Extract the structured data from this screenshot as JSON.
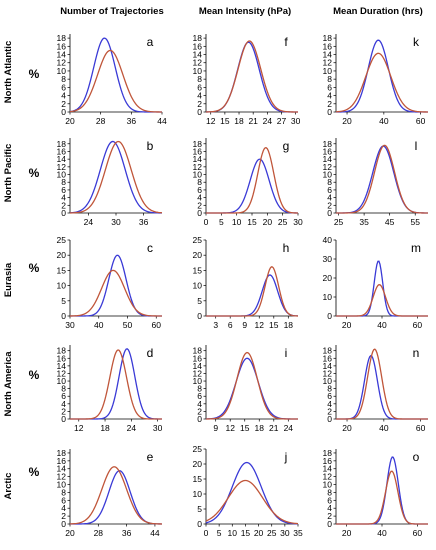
{
  "figure": {
    "column_headers": [
      "Number of Trajectories",
      "Mean Intensity (hPa)",
      "Mean Duration (hrs)"
    ],
    "row_labels": [
      "North Atlantic",
      "North Pacific",
      "Eurasia",
      "North America",
      "Arctic"
    ],
    "ylabel": "%",
    "colors": {
      "blue": "#3a3ad6",
      "red": "#c0563a",
      "green": "#5aa84a"
    }
  },
  "chart_data": [
    {
      "id": "a",
      "type": "line",
      "title": "a",
      "xlabel": "",
      "ylabel": "%",
      "xticks": [
        20,
        28,
        36,
        44
      ],
      "xlim": [
        20,
        44
      ],
      "yticks": [
        0,
        2,
        4,
        6,
        8,
        10,
        12,
        14,
        16,
        18
      ],
      "ylim": [
        0,
        19
      ],
      "series": [
        {
          "color": "blue",
          "peak_x": 29,
          "peak_y": 18,
          "width": 2.8
        },
        {
          "color": "red",
          "peak_x": 30.5,
          "peak_y": 15,
          "width": 3.3
        }
      ]
    },
    {
      "id": "f",
      "type": "line",
      "title": "f",
      "xlabel": "",
      "ylabel": "",
      "xticks": [
        12,
        15,
        18,
        21,
        24,
        27,
        30
      ],
      "xlim": [
        11,
        30.5
      ],
      "yticks": [
        0,
        2,
        4,
        6,
        8,
        10,
        12,
        14,
        16,
        18
      ],
      "ylim": [
        0,
        19
      ],
      "series": [
        {
          "color": "blue",
          "peak_x": 20,
          "peak_y": 17,
          "width": 2.3
        },
        {
          "color": "red",
          "peak_x": 20.2,
          "peak_y": 17.3,
          "width": 2.4
        }
      ]
    },
    {
      "id": "k",
      "type": "line",
      "title": "k",
      "xlabel": "",
      "ylabel": "",
      "xticks": [
        20,
        40,
        60
      ],
      "xlim": [
        14,
        64
      ],
      "yticks": [
        0,
        2,
        4,
        6,
        8,
        10,
        12,
        14,
        16,
        18
      ],
      "ylim": [
        0,
        19
      ],
      "series": [
        {
          "color": "blue",
          "peak_x": 37,
          "peak_y": 17.5,
          "width": 5.5
        },
        {
          "color": "red",
          "peak_x": 37,
          "peak_y": 14.3,
          "width": 6.8
        }
      ]
    },
    {
      "id": "b",
      "type": "line",
      "title": "b",
      "xlabel": "",
      "ylabel": "%",
      "xticks": [
        24,
        30,
        36
      ],
      "xlim": [
        20,
        40
      ],
      "yticks": [
        0,
        2,
        4,
        6,
        8,
        10,
        12,
        14,
        16,
        18
      ],
      "ylim": [
        0,
        19.5
      ],
      "series": [
        {
          "color": "blue",
          "peak_x": 29.3,
          "peak_y": 18.6,
          "width": 2.7
        },
        {
          "color": "red",
          "peak_x": 30.5,
          "peak_y": 18.6,
          "width": 2.8
        }
      ]
    },
    {
      "id": "g",
      "type": "line",
      "title": "g",
      "xlabel": "",
      "ylabel": "",
      "xticks": [
        0,
        5,
        10,
        15,
        20,
        25,
        30
      ],
      "xlim": [
        0,
        30
      ],
      "yticks": [
        0,
        2,
        4,
        6,
        8,
        10,
        12,
        14,
        16,
        18
      ],
      "ylim": [
        0,
        19.5
      ],
      "series": [
        {
          "color": "blue",
          "peak_x": 17.5,
          "peak_y": 14,
          "width": 3.1
        },
        {
          "color": "red",
          "peak_x": 19.5,
          "peak_y": 17,
          "width": 2.6
        }
      ]
    },
    {
      "id": "l",
      "type": "line",
      "title": "l",
      "xlabel": "",
      "ylabel": "",
      "xticks": [
        25,
        35,
        45,
        55
      ],
      "xlim": [
        24,
        60
      ],
      "yticks": [
        0,
        2,
        4,
        6,
        8,
        10,
        12,
        14,
        16,
        18
      ],
      "ylim": [
        0,
        19.5
      ],
      "series": [
        {
          "color": "blue",
          "peak_x": 42.5,
          "peak_y": 17.4,
          "width": 4.1
        },
        {
          "color": "red",
          "peak_x": 43,
          "peak_y": 17.6,
          "width": 3.9
        }
      ]
    },
    {
      "id": "c",
      "type": "line",
      "title": "c",
      "xlabel": "",
      "ylabel": "%",
      "xticks": [
        30,
        40,
        50,
        60
      ],
      "xlim": [
        30,
        62
      ],
      "yticks": [
        0,
        5,
        10,
        15,
        20,
        25
      ],
      "ylim": [
        0,
        25
      ],
      "series": [
        {
          "color": "blue",
          "peak_x": 46.5,
          "peak_y": 20,
          "width": 3.0
        },
        {
          "color": "red",
          "peak_x": 45,
          "peak_y": 15,
          "width": 4.0
        }
      ]
    },
    {
      "id": "h",
      "type": "line",
      "title": "h",
      "xlabel": "",
      "ylabel": "",
      "xticks": [
        3,
        6,
        9,
        12,
        15,
        18
      ],
      "xlim": [
        1,
        20
      ],
      "yticks": [
        0,
        5,
        10,
        15,
        20,
        25
      ],
      "ylim": [
        0,
        25
      ],
      "series": [
        {
          "color": "blue",
          "peak_x": 14.2,
          "peak_y": 13.5,
          "width": 1.6
        },
        {
          "color": "red",
          "peak_x": 14.6,
          "peak_y": 16.2,
          "width": 1.4
        }
      ]
    },
    {
      "id": "m",
      "type": "line",
      "title": "m",
      "xlabel": "",
      "ylabel": "",
      "xticks": [
        20,
        40,
        60
      ],
      "xlim": [
        14,
        66
      ],
      "yticks": [
        0,
        10,
        20,
        30,
        40
      ],
      "ylim": [
        0,
        40
      ],
      "series": [
        {
          "color": "blue",
          "peak_x": 38,
          "peak_y": 29,
          "width": 2.4
        },
        {
          "color": "red",
          "peak_x": 38.5,
          "peak_y": 16.5,
          "width": 3.5
        }
      ]
    },
    {
      "id": "d",
      "type": "line",
      "title": "d",
      "xlabel": "",
      "ylabel": "%",
      "xticks": [
        12,
        18,
        24,
        30
      ],
      "xlim": [
        10,
        31
      ],
      "yticks": [
        0,
        2,
        4,
        6,
        8,
        10,
        12,
        14,
        16,
        18
      ],
      "ylim": [
        0,
        19.5
      ],
      "series": [
        {
          "color": "blue",
          "peak_x": 23,
          "peak_y": 18.5,
          "width": 1.8
        },
        {
          "color": "red",
          "peak_x": 21,
          "peak_y": 18.2,
          "width": 1.9
        }
      ]
    },
    {
      "id": "i",
      "type": "line",
      "title": "i",
      "xlabel": "",
      "ylabel": "",
      "xticks": [
        9,
        12,
        15,
        18,
        21,
        24
      ],
      "xlim": [
        7,
        26
      ],
      "yticks": [
        0,
        2,
        4,
        6,
        8,
        10,
        12,
        14,
        16,
        18
      ],
      "ylim": [
        0,
        19.5
      ],
      "series": [
        {
          "color": "blue",
          "peak_x": 15.5,
          "peak_y": 16,
          "width": 2.3
        },
        {
          "color": "red",
          "peak_x": 15.5,
          "peak_y": 17.5,
          "width": 2.1
        }
      ]
    },
    {
      "id": "n",
      "type": "line",
      "title": "n",
      "xlabel": "",
      "ylabel": "",
      "xticks": [
        20,
        40,
        60
      ],
      "xlim": [
        14,
        64
      ],
      "yticks": [
        0,
        2,
        4,
        6,
        8,
        10,
        12,
        14,
        16,
        18
      ],
      "ylim": [
        0,
        19.5
      ],
      "series": [
        {
          "color": "blue",
          "peak_x": 33,
          "peak_y": 16.7,
          "width": 3.5
        },
        {
          "color": "red",
          "peak_x": 35,
          "peak_y": 18.4,
          "width": 3.8
        }
      ]
    },
    {
      "id": "e",
      "type": "line",
      "title": "e",
      "xlabel": "",
      "ylabel": "%",
      "xticks": [
        20,
        28,
        36,
        44
      ],
      "xlim": [
        20,
        46
      ],
      "yticks": [
        0,
        2,
        4,
        6,
        8,
        10,
        12,
        14,
        16,
        18
      ],
      "ylim": [
        0,
        19
      ],
      "series": [
        {
          "color": "blue",
          "peak_x": 34,
          "peak_y": 13.5,
          "width": 3.0
        },
        {
          "color": "red",
          "peak_x": 32.5,
          "peak_y": 14.5,
          "width": 3.5
        }
      ]
    },
    {
      "id": "j",
      "type": "line",
      "title": "j",
      "xlabel": "",
      "ylabel": "",
      "xticks": [
        0,
        5,
        10,
        15,
        20,
        25,
        30,
        35
      ],
      "xlim": [
        0,
        35
      ],
      "yticks": [
        0,
        5,
        10,
        15,
        20,
        25
      ],
      "ylim": [
        0,
        25
      ],
      "series": [
        {
          "color": "blue",
          "peak_x": 15.5,
          "peak_y": 20.5,
          "width": 5.5
        },
        {
          "color": "red",
          "peak_x": 15,
          "peak_y": 14.5,
          "width": 6.5
        }
      ]
    },
    {
      "id": "o",
      "type": "line",
      "title": "o",
      "xlabel": "",
      "ylabel": "",
      "xticks": [
        20,
        40,
        60
      ],
      "xlim": [
        14,
        66
      ],
      "yticks": [
        0,
        2,
        4,
        6,
        8,
        10,
        12,
        14,
        16,
        18
      ],
      "ylim": [
        0,
        19
      ],
      "series": [
        {
          "color": "blue",
          "peak_x": 46,
          "peak_y": 17,
          "width": 3.2
        },
        {
          "color": "red",
          "peak_x": 45.5,
          "peak_y": 13.4,
          "width": 3.5
        }
      ]
    }
  ]
}
